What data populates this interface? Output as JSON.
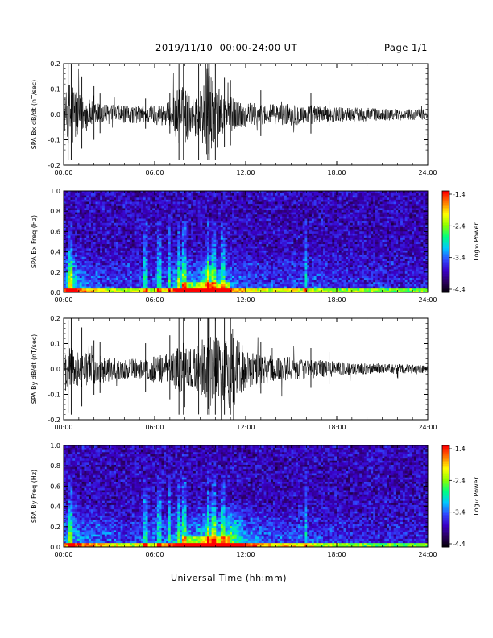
{
  "page": {
    "title": "2019/11/10  00:00-24:00 UT",
    "page_label": "Page 1/1",
    "x_axis_title": "Universal Time (hh:mm)"
  },
  "chart_data": [
    {
      "type": "line",
      "id": "bx-waveform",
      "ylabel": "SPA Bx dB/dt (nT/sec)",
      "ylim": [
        -0.2,
        0.2
      ],
      "y_ticks": [
        -0.2,
        -0.1,
        0.0,
        0.1,
        0.2
      ],
      "y_tick_labels": [
        "-0.2",
        "-0.1",
        "0.0",
        "0.1",
        "0.2"
      ],
      "xlim": [
        "00:00",
        "24:00"
      ],
      "x_ticks": [
        "00:00",
        "06:00",
        "12:00",
        "18:00",
        "24:00"
      ],
      "series_color": "#000000",
      "envelope": {
        "hours": [
          0,
          0.5,
          1,
          2,
          3,
          4,
          5,
          6,
          7,
          7.6,
          8,
          8.5,
          9,
          9.5,
          10,
          10.5,
          11,
          12,
          13,
          14,
          15,
          16,
          17,
          18,
          19,
          20,
          21,
          22,
          23,
          24
        ],
        "amplitude": [
          0.05,
          0.16,
          0.08,
          0.05,
          0.04,
          0.035,
          0.035,
          0.04,
          0.05,
          0.12,
          0.12,
          0.06,
          0.1,
          0.2,
          0.1,
          0.08,
          0.07,
          0.05,
          0.04,
          0.04,
          0.045,
          0.04,
          0.035,
          0.03,
          0.028,
          0.028,
          0.025,
          0.022,
          0.022,
          0.02
        ]
      }
    },
    {
      "type": "heatmap",
      "id": "bx-spectrogram",
      "ylabel": "SPA Bx Freq (Hz)",
      "ylim": [
        0.0,
        1.0
      ],
      "y_ticks": [
        0.0,
        0.2,
        0.4,
        0.6,
        0.8,
        1.0
      ],
      "y_tick_labels": [
        "0.0",
        "0.2",
        "0.4",
        "0.6",
        "0.8",
        "1.0"
      ],
      "xlim": [
        "00:00",
        "24:00"
      ],
      "x_ticks": [
        "00:00",
        "06:00",
        "12:00",
        "18:00",
        "24:00"
      ],
      "colorbar": {
        "label": "Log₁₀ Power",
        "range": [
          -4.4,
          -1.4
        ],
        "tick_labels": [
          "-1.4",
          "-2.4",
          "-3.4",
          "-4.4"
        ],
        "colors": [
          "#000000",
          "#2b005e",
          "#3a00c8",
          "#2f4bff",
          "#00c8ff",
          "#00ff80",
          "#8cff00",
          "#ffff00",
          "#ff8000",
          "#ff0000"
        ]
      }
    },
    {
      "type": "line",
      "id": "by-waveform",
      "ylabel": "SPA By dB/dt (nT/sec)",
      "ylim": [
        -0.2,
        0.2
      ],
      "y_ticks": [
        -0.2,
        -0.1,
        0.0,
        0.1,
        0.2
      ],
      "y_tick_labels": [
        "-0.2",
        "-0.1",
        "0.0",
        "0.1",
        "0.2"
      ],
      "xlim": [
        "00:00",
        "24:00"
      ],
      "x_ticks": [
        "00:00",
        "06:00",
        "12:00",
        "18:00",
        "24:00"
      ],
      "series_color": "#000000",
      "envelope": {
        "hours": [
          0,
          0.5,
          1,
          2,
          3,
          4,
          5,
          6,
          7,
          7.6,
          8,
          8.5,
          9,
          9.5,
          10,
          10.5,
          11,
          12,
          13,
          14,
          15,
          16,
          17,
          18,
          19,
          20,
          21,
          22,
          23,
          24
        ],
        "amplitude": [
          0.05,
          0.1,
          0.08,
          0.06,
          0.05,
          0.04,
          0.04,
          0.05,
          0.06,
          0.1,
          0.09,
          0.08,
          0.1,
          0.16,
          0.14,
          0.12,
          0.18,
          0.08,
          0.06,
          0.05,
          0.05,
          0.04,
          0.035,
          0.03,
          0.025,
          0.02,
          0.02,
          0.02,
          0.018,
          0.016
        ]
      }
    },
    {
      "type": "heatmap",
      "id": "by-spectrogram",
      "ylabel": "SPA By Freq (Hz)",
      "ylim": [
        0.0,
        1.0
      ],
      "y_ticks": [
        0.0,
        0.2,
        0.4,
        0.6,
        0.8,
        1.0
      ],
      "y_tick_labels": [
        "0.0",
        "0.2",
        "0.4",
        "0.6",
        "0.8",
        "1.0"
      ],
      "xlim": [
        "00:00",
        "24:00"
      ],
      "x_ticks": [
        "00:00",
        "06:00",
        "12:00",
        "18:00",
        "24:00"
      ],
      "colorbar": {
        "label": "Log₁₀ Power",
        "range": [
          -4.4,
          -1.4
        ],
        "tick_labels": [
          "-1.4",
          "-2.4",
          "-3.4",
          "-4.4"
        ],
        "colors": [
          "#000000",
          "#2b005e",
          "#3a00c8",
          "#2f4bff",
          "#00c8ff",
          "#00ff80",
          "#8cff00",
          "#ffff00",
          "#ff8000",
          "#ff0000"
        ]
      }
    }
  ]
}
